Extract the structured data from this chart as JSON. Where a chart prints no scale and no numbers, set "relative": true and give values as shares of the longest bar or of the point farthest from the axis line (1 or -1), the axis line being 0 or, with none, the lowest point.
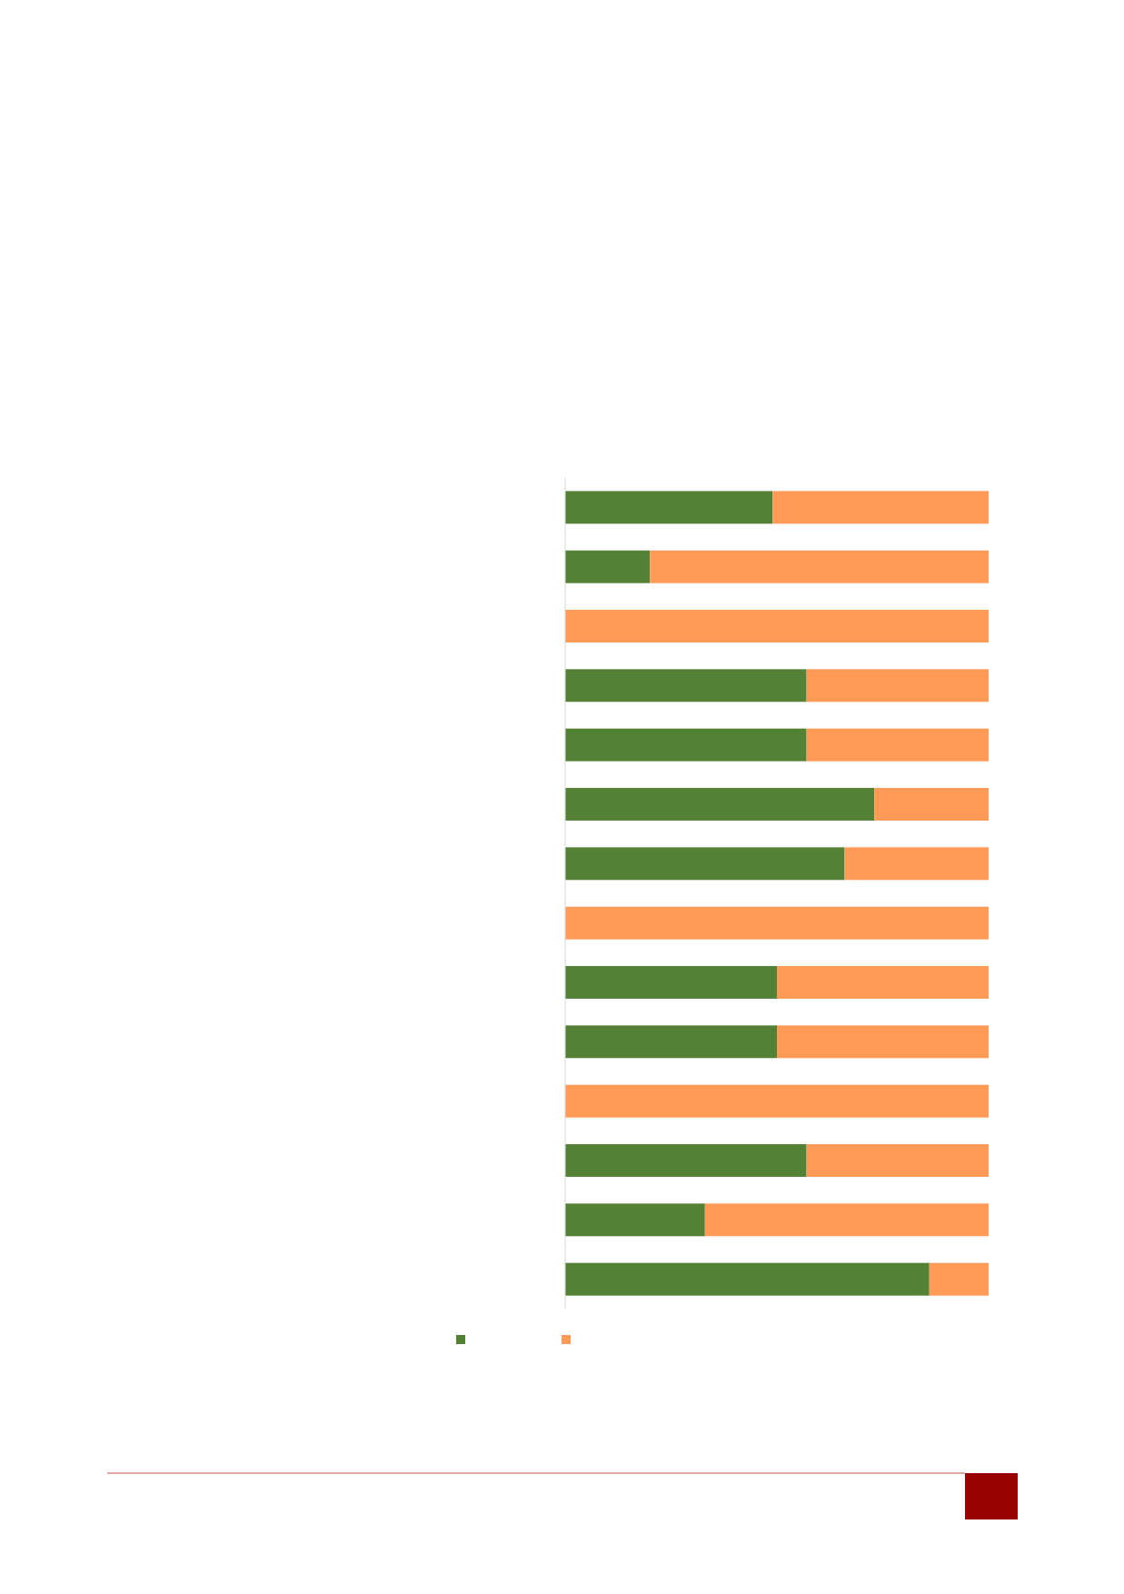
{
  "chart_data": {
    "type": "bar",
    "orientation": "horizontal",
    "stacked": true,
    "relative": true,
    "categories": [
      null,
      null,
      null,
      null,
      null,
      null,
      null,
      null,
      null,
      null,
      null,
      null,
      null,
      null
    ],
    "series": [
      {
        "color": "#538135",
        "values": [
          0.49,
          0.2,
          0,
          0.57,
          0.57,
          0.73,
          0.66,
          0,
          0.5,
          0.5,
          0,
          0.57,
          0.33,
          0.86
        ]
      },
      {
        "color": "#ff9b57",
        "values": [
          0.51,
          0.8,
          1,
          0.43,
          0.43,
          0.27,
          0.34,
          1,
          0.5,
          0.5,
          1,
          0.43,
          0.67,
          0.14
        ]
      }
    ]
  }
}
